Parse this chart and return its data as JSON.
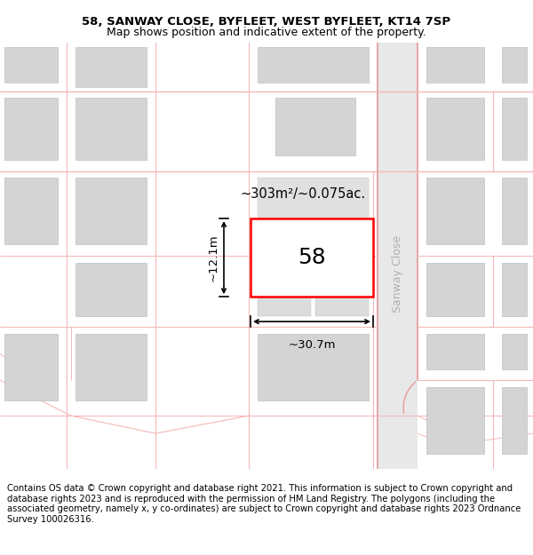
{
  "title_line1": "58, SANWAY CLOSE, BYFLEET, WEST BYFLEET, KT14 7SP",
  "title_line2": "Map shows position and indicative extent of the property.",
  "copyright_text": "Contains OS data © Crown copyright and database right 2021. This information is subject to Crown copyright and database rights 2023 and is reproduced with the permission of HM Land Registry. The polygons (including the associated geometry, namely x, y co-ordinates) are subject to Crown copyright and database rights 2023 Ordnance Survey 100026316.",
  "road_color": "#f5b8b8",
  "road_color_dark": "#e89898",
  "building_face": "#d4d4d4",
  "building_edge": "#c0c0c0",
  "sanway_fill": "#e8e8e8",
  "property_label": "58",
  "area_label": "~303m²/~0.075ac.",
  "width_label": "~30.7m",
  "height_label": "~12.1m",
  "road_label": "Sanway Close",
  "fig_width": 6.0,
  "fig_height": 6.25,
  "title_fontsize": 9.5,
  "subtitle_fontsize": 9.0,
  "copyright_fontsize": 7.2
}
